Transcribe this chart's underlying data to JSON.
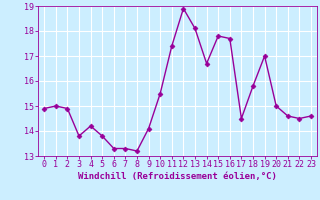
{
  "x": [
    0,
    1,
    2,
    3,
    4,
    5,
    6,
    7,
    8,
    9,
    10,
    11,
    12,
    13,
    14,
    15,
    16,
    17,
    18,
    19,
    20,
    21,
    22,
    23
  ],
  "y": [
    14.9,
    15.0,
    14.9,
    13.8,
    14.2,
    13.8,
    13.3,
    13.3,
    13.2,
    14.1,
    15.5,
    17.4,
    18.9,
    18.1,
    16.7,
    17.8,
    17.7,
    14.5,
    15.8,
    17.0,
    15.0,
    14.6,
    14.5,
    14.6
  ],
  "line_color": "#990099",
  "marker": "D",
  "marker_size": 2.5,
  "linewidth": 1.0,
  "bg_color": "#cceeff",
  "grid_color": "#ffffff",
  "xlabel": "Windchill (Refroidissement éolien,°C)",
  "xlim": [
    -0.5,
    23.5
  ],
  "ylim": [
    13,
    19
  ],
  "yticks": [
    13,
    14,
    15,
    16,
    17,
    18,
    19
  ],
  "xticks": [
    0,
    1,
    2,
    3,
    4,
    5,
    6,
    7,
    8,
    9,
    10,
    11,
    12,
    13,
    14,
    15,
    16,
    17,
    18,
    19,
    20,
    21,
    22,
    23
  ],
  "tick_color": "#990099",
  "label_color": "#990099",
  "xlabel_fontsize": 6.5,
  "tick_fontsize": 6.0
}
